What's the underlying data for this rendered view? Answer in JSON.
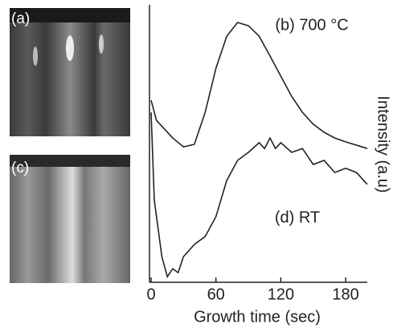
{
  "panel_labels": [
    "(a)",
    "(c)"
  ],
  "chart_data": {
    "type": "line",
    "xlabel": "Growth time (sec)",
    "ylabel": "Intensity (a.u)",
    "xlim": [
      0,
      200
    ],
    "xticks": [
      0,
      60,
      120,
      180
    ],
    "ylim": [
      0,
      100
    ],
    "series": [
      {
        "name": "(b) 700 °C",
        "color": "#222222",
        "x": [
          0,
          5,
          20,
          30,
          40,
          50,
          60,
          70,
          80,
          90,
          100,
          110,
          120,
          130,
          140,
          150,
          160,
          170,
          180,
          200
        ],
        "values": [
          66,
          58.7,
          52.3,
          49.1,
          50,
          61.6,
          77.6,
          89.2,
          94.2,
          93,
          89.2,
          82,
          74.7,
          67.4,
          61.6,
          57.3,
          54.4,
          52.3,
          50.9,
          48.5
        ]
      },
      {
        "name": "(d) RT",
        "color": "#222222",
        "x": [
          0,
          3,
          10,
          15,
          20,
          25,
          30,
          40,
          50,
          60,
          70,
          80,
          90,
          100,
          105,
          110,
          115,
          120,
          130,
          140,
          150,
          160,
          170,
          180,
          190,
          200
        ],
        "values": [
          61.6,
          29.7,
          9.3,
          2,
          4.9,
          3.5,
          9.3,
          13.7,
          16.6,
          23.8,
          36.9,
          44.2,
          47.1,
          50.6,
          48.5,
          52.3,
          48.5,
          50.6,
          47.1,
          48.5,
          42.7,
          44.2,
          39.8,
          41.3,
          39.8,
          35.5
        ]
      }
    ]
  }
}
